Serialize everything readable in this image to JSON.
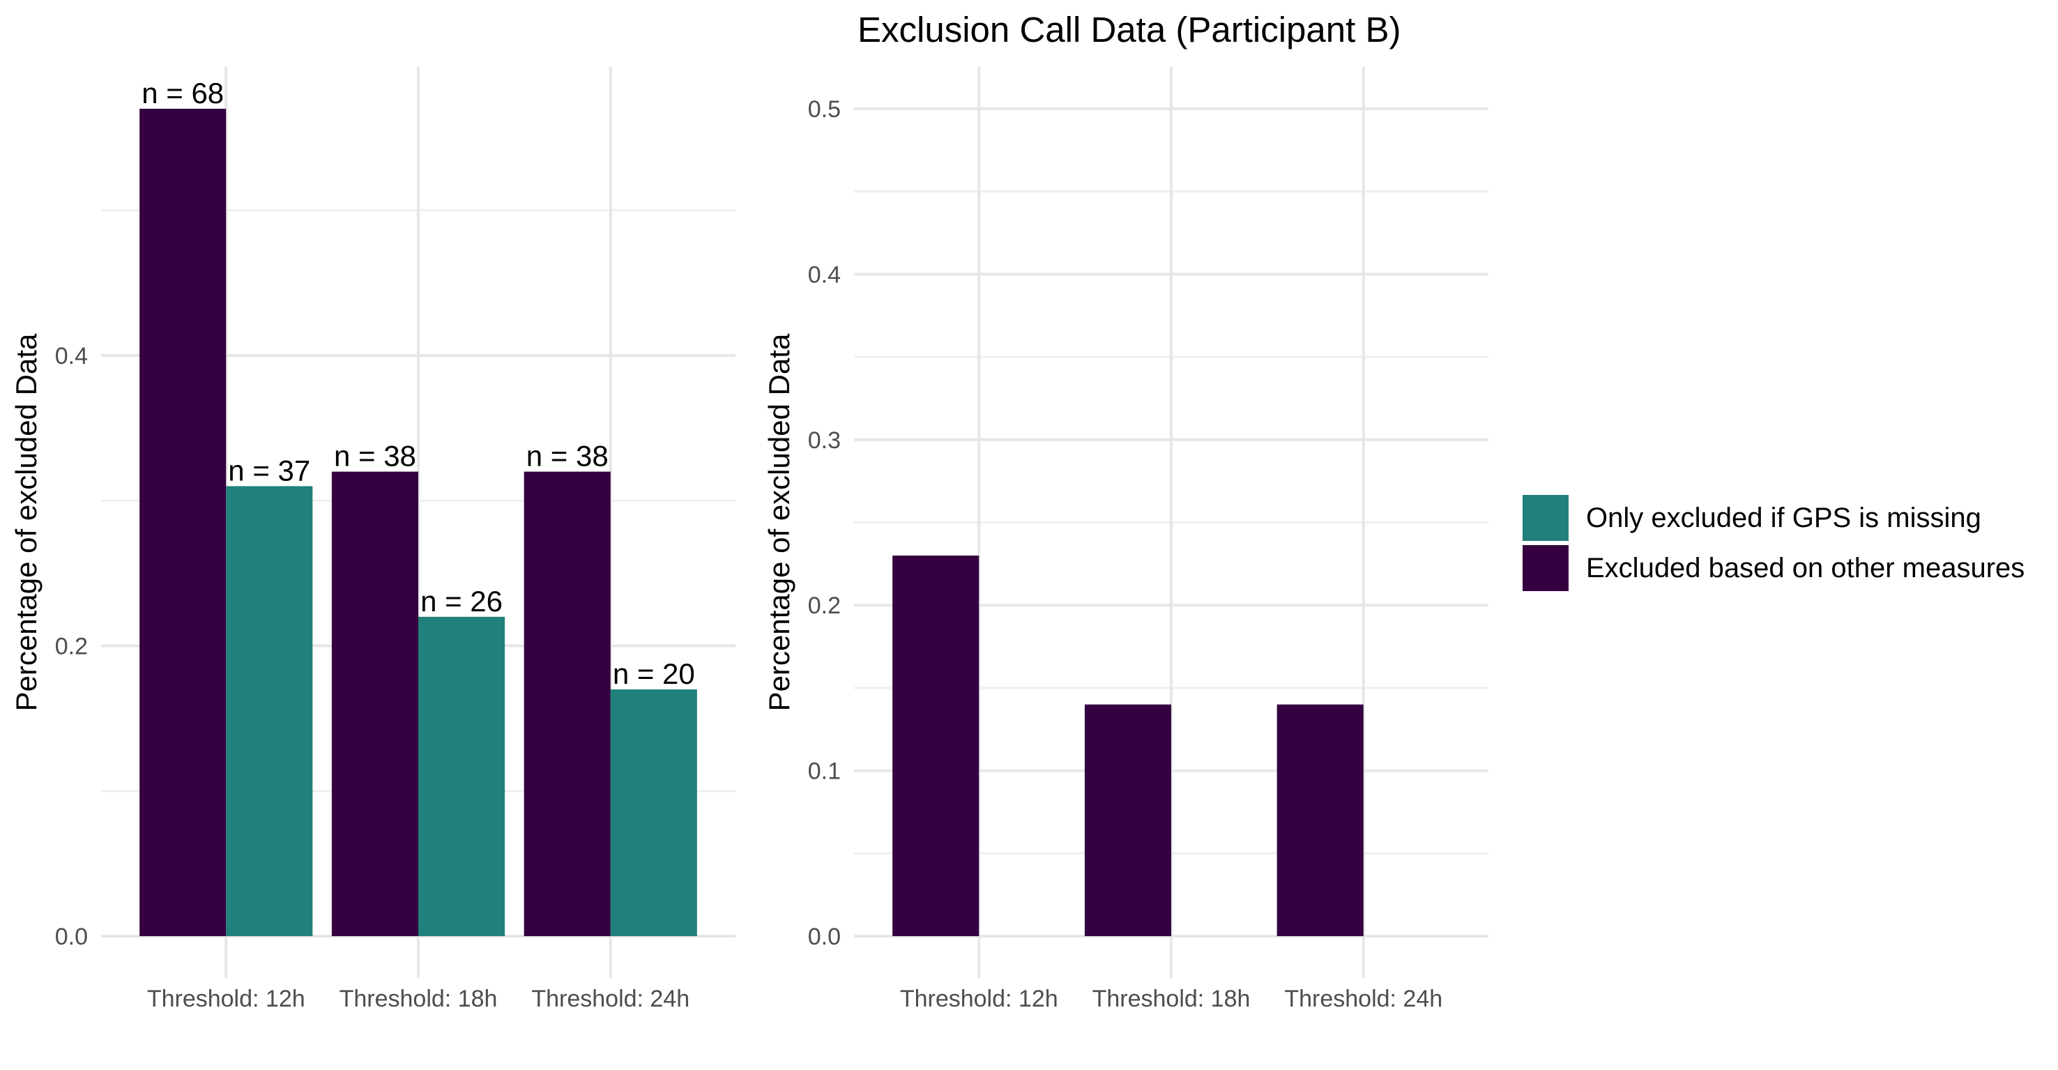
{
  "chart_data": [
    {
      "type": "bar",
      "title": "",
      "xlabel": "",
      "ylabel": "Percentage of excluded Data",
      "categories": [
        "Threshold: 12h",
        "Threshold: 18h",
        "Threshold: 24h"
      ],
      "ylim": [
        0,
        0.57
      ],
      "yticks": [
        0.0,
        0.2,
        0.4
      ],
      "ytick_labels": [
        "0.0",
        "0.2",
        "0.4"
      ],
      "grid": true,
      "series": [
        {
          "name": "Excluded based on other measures",
          "color": "#350040",
          "values": [
            0.57,
            0.32,
            0.32
          ],
          "labels": [
            "n = 68",
            "n = 38",
            "n = 38"
          ]
        },
        {
          "name": "Only excluded if GPS is missing",
          "color": "#21807b",
          "values": [
            0.31,
            0.22,
            0.17
          ],
          "labels": [
            "n = 37",
            "n = 26",
            "n = 20"
          ]
        }
      ]
    },
    {
      "type": "bar",
      "title": "Exclusion Call Data (Participant B)",
      "xlabel": "",
      "ylabel": "Percentage of excluded Data",
      "categories": [
        "Threshold: 12h",
        "Threshold: 18h",
        "Threshold: 24h"
      ],
      "ylim": [
        0,
        0.5
      ],
      "yticks": [
        0.0,
        0.1,
        0.2,
        0.3,
        0.4,
        0.5
      ],
      "ytick_labels": [
        "0.0",
        "0.1",
        "0.2",
        "0.3",
        "0.4",
        "0.5"
      ],
      "grid": true,
      "series": [
        {
          "name": "Excluded based on other measures",
          "color": "#350040",
          "values": [
            0.23,
            0.14,
            0.14
          ],
          "labels": []
        }
      ]
    }
  ],
  "legend": {
    "placement": "right",
    "items": [
      {
        "label": "Only excluded if GPS is missing",
        "color": "#21807b"
      },
      {
        "label": "Excluded based on other measures",
        "color": "#350040"
      }
    ]
  }
}
